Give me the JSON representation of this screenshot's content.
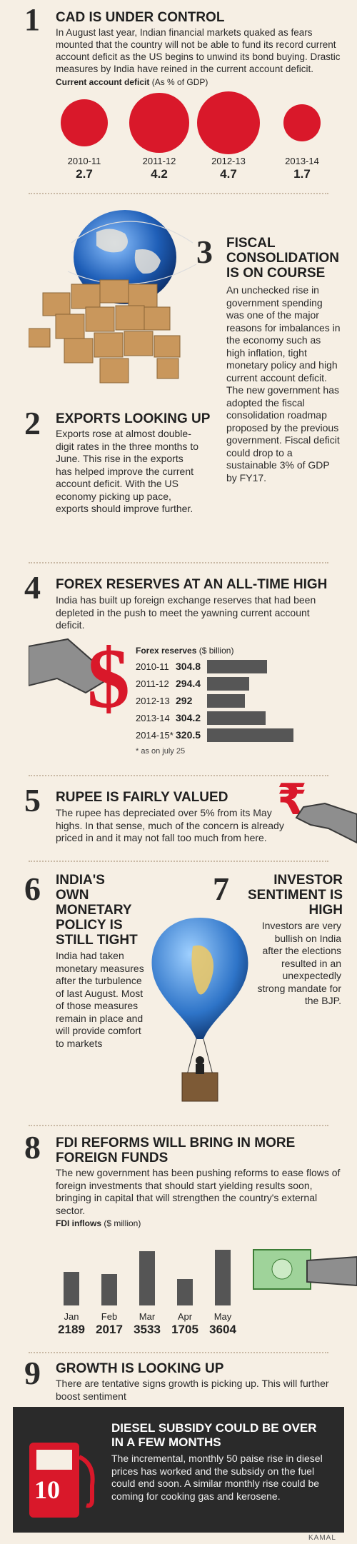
{
  "s1": {
    "num": "1",
    "title": "CAD IS UNDER CONTROL",
    "body": "In August last year, Indian financial markets quaked as fears mounted that the country will not be able to fund its record current account deficit as the US begins to unwind its bond buying. Drastic measures by India have reined in the current account deficit.",
    "caption": "Current account deficit",
    "caption_unit": "(As % of GDP)"
  },
  "s3": {
    "num": "3",
    "title": "FISCAL CONSOLIDATION IS ON COURSE",
    "body": "An unchecked rise in government spending was one of the major reasons for imbalances in the economy such as high inflation, tight monetary policy and high current account deficit. The new government has adopted the fiscal consolidation roadmap proposed by the previous government. Fiscal deficit could drop to a sustainable 3% of GDP by FY17."
  },
  "s2": {
    "num": "2",
    "title": "EXPORTS LOOKING UP",
    "body": "Exports rose at almost double-digit rates in the three months to June. This rise in the exports has helped improve the current account deficit. With the US economy picking up pace, exports should improve further."
  },
  "s4": {
    "num": "4",
    "title": "FOREX RESERVES AT AN ALL-TIME HIGH",
    "body": "India has built up foreign exchange reserves that had been depleted in the push to meet the yawning current account deficit.",
    "caption": "Forex reserves",
    "caption_unit": "($ billion)",
    "footnote": "* as on july 25"
  },
  "s5": {
    "num": "5",
    "title": "RUPEE IS FAIRLY VALUED",
    "body": "The rupee has depreciated over 5% from its May highs. In that sense, much of the concern is already priced in and it may not fall too much from here.",
    "symbol": "₹"
  },
  "s6": {
    "num": "6",
    "title": "INDIA'S OWN MONETARY POLICY IS STILL TIGHT",
    "body": "India had taken monetary measures after the turbulence of last August. Most of those measures remain in place and will provide comfort to markets"
  },
  "s7": {
    "num": "7",
    "title": "INVESTOR SENTIMENT IS HIGH",
    "body": "Investors are very bullish on India after the elections resulted in an unexpectedly strong mandate for the BJP."
  },
  "s8": {
    "num": "8",
    "title": "FDI REFORMS WILL BRING IN MORE FOREIGN FUNDS",
    "body": "The new government has been pushing reforms to ease flows of foreign investments that should start yielding results soon, bringing in capital that will strengthen the country's external sector.",
    "caption": "FDI inflows",
    "caption_unit": "($ million)"
  },
  "s9": {
    "num": "9",
    "title": "GROWTH IS LOOKING UP",
    "body": "There are tentative signs growth is picking up. This will further boost sentiment"
  },
  "s10": {
    "num": "10",
    "title": "DIESEL SUBSIDY COULD BE OVER IN A FEW MONTHS",
    "body": "The incremental, monthly 50 paise rise in diesel prices has worked and the subsidy on the fuel could end soon. A similar monthly rise could be coming for cooking gas and kerosene."
  },
  "credit": "KAMAL",
  "colors": {
    "accent_red": "#d9182a",
    "bar_gray": "#555555",
    "background": "#f6efe4",
    "dark_box": "#2a2a2a"
  },
  "chart_data": [
    {
      "type": "bubble",
      "title": "Current account deficit (As % of GDP)",
      "categories": [
        "2010-11",
        "2011-12",
        "2012-13",
        "2013-14"
      ],
      "values": [
        2.7,
        4.2,
        4.7,
        1.7
      ],
      "labels": [
        "2.7",
        "4.2",
        "4.7",
        "1.7"
      ]
    },
    {
      "type": "bar",
      "orientation": "horizontal",
      "title": "Forex reserves ($ billion)",
      "categories": [
        "2010-11",
        "2011-12",
        "2012-13",
        "2013-14",
        "2014-15*"
      ],
      "values": [
        304.8,
        294.4,
        292,
        304.2,
        320.5
      ],
      "labels": [
        "304.8",
        "294.4",
        "292",
        "304.2",
        "320.5"
      ]
    },
    {
      "type": "bar",
      "title": "FDI inflows ($ million)",
      "categories": [
        "Jan",
        "Feb",
        "Mar",
        "Apr",
        "May"
      ],
      "values": [
        2189,
        2017,
        3533,
        1705,
        3604
      ],
      "labels": [
        "2189",
        "2017",
        "3533",
        "1705",
        "3604"
      ]
    }
  ]
}
